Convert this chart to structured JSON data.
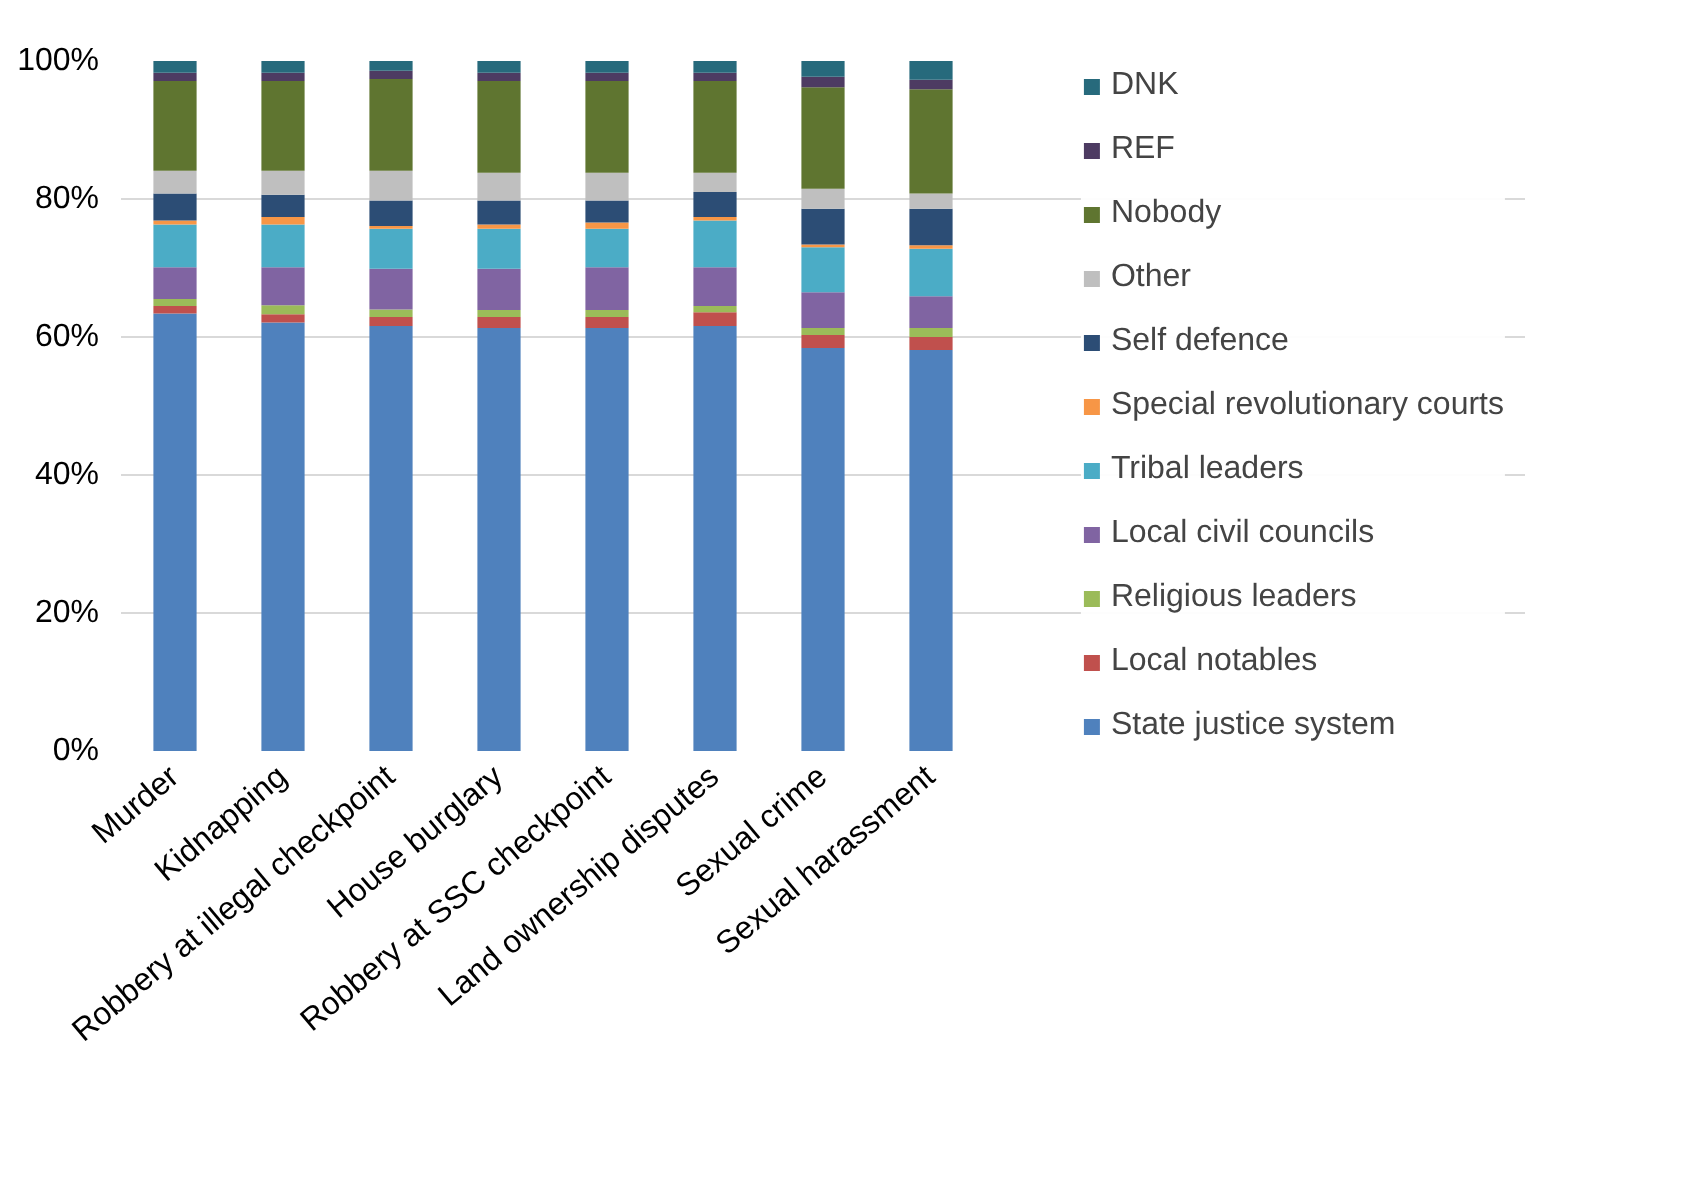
{
  "chart_data": {
    "type": "bar",
    "stacked": true,
    "categories": [
      "Murder",
      "Kidnapping",
      "Robbery at illegal checkpoint",
      "House burglary",
      "Robbery at SSC checkpoint",
      "Land ownership disputes",
      "Sexual crime",
      "Sexual harassment"
    ],
    "series": [
      {
        "name": "State justice system",
        "color": "#4f81bd",
        "values": [
          63.4,
          62.1,
          61.6,
          61.3,
          61.3,
          61.6,
          58.4,
          58.1
        ]
      },
      {
        "name": "Local notables",
        "color": "#c0504d",
        "values": [
          1.1,
          1.2,
          1.3,
          1.6,
          1.6,
          2.0,
          1.9,
          1.9
        ]
      },
      {
        "name": "Religious leaders",
        "color": "#9bbb59",
        "values": [
          1.0,
          1.3,
          1.1,
          1.0,
          1.0,
          0.9,
          1.0,
          1.3
        ]
      },
      {
        "name": "Local civil councils",
        "color": "#8064a2",
        "values": [
          4.6,
          5.5,
          5.9,
          6.0,
          6.2,
          5.6,
          5.2,
          4.6
        ]
      },
      {
        "name": "Tribal leaders",
        "color": "#4bacc6",
        "values": [
          6.2,
          6.2,
          5.8,
          5.8,
          5.6,
          6.8,
          6.5,
          6.9
        ]
      },
      {
        "name": "Special revolutionary courts",
        "color": "#f79646",
        "values": [
          0.6,
          1.1,
          0.4,
          0.6,
          0.9,
          0.5,
          0.4,
          0.5
        ]
      },
      {
        "name": "Self defence",
        "color": "#2c4d75",
        "values": [
          3.9,
          3.2,
          3.7,
          3.5,
          3.2,
          3.6,
          5.2,
          5.3
        ]
      },
      {
        "name": "Other",
        "color": "#bfbfbf",
        "values": [
          3.3,
          3.5,
          4.3,
          4.0,
          4.0,
          2.8,
          2.9,
          2.2
        ]
      },
      {
        "name": "Nobody",
        "color": "#5f7530",
        "values": [
          13.0,
          13.0,
          13.3,
          13.3,
          13.3,
          13.3,
          14.7,
          15.1
        ]
      },
      {
        "name": "REF",
        "color": "#4d3b62",
        "values": [
          1.2,
          1.2,
          1.2,
          1.2,
          1.2,
          1.2,
          1.5,
          1.4
        ]
      },
      {
        "name": "DNK",
        "color": "#276a7c",
        "values": [
          1.7,
          1.7,
          1.4,
          1.7,
          1.7,
          1.7,
          2.3,
          2.7
        ]
      }
    ],
    "ylim": [
      0,
      100
    ],
    "yticks": [
      {
        "value": 0,
        "label": "0%"
      },
      {
        "value": 20,
        "label": "20%"
      },
      {
        "value": 40,
        "label": "40%"
      },
      {
        "value": 60,
        "label": "60%"
      },
      {
        "value": 80,
        "label": "80%"
      },
      {
        "value": 100,
        "label": "100%"
      }
    ],
    "grid": "y",
    "legend": "right"
  }
}
